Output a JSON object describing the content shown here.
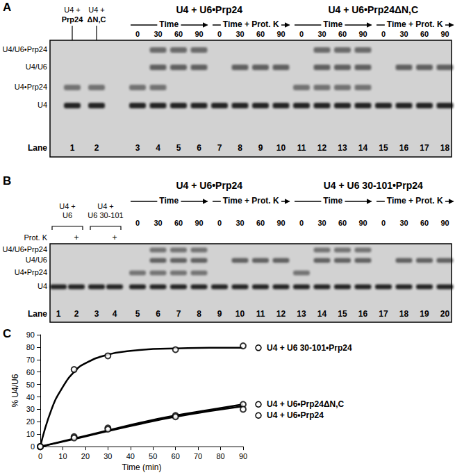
{
  "panels": {
    "A": {
      "label": "A",
      "lane_headers": [
        [
          "U4 +",
          "Prp24"
        ],
        [
          "U4 +",
          "ΔN,C"
        ]
      ],
      "groups": [
        {
          "title": "U4 + U6•Prp24",
          "arrows": [
            {
              "label": "Time",
              "times": [
                0,
                30,
                60,
                90
              ]
            },
            {
              "label": "Time + Prot. K",
              "times": [
                0,
                30,
                60,
                90
              ]
            }
          ]
        },
        {
          "title": "U4 + U6•Prp24ΔN,C",
          "arrows": [
            {
              "label": "Time",
              "times": [
                0,
                30,
                60,
                90
              ]
            },
            {
              "label": "Time + Prot. K",
              "times": [
                0,
                30,
                60,
                90
              ]
            }
          ]
        }
      ],
      "rows": [
        "U4/U6•Prp24",
        "U4/U6",
        "U4•Prp24",
        "U4"
      ],
      "lane_title": "Lane",
      "lanes": [
        {
          "number": 1,
          "bands": [
            "U4•Prp24",
            "U4"
          ]
        },
        {
          "number": 2,
          "bands": [
            "U4•Prp24",
            "U4"
          ]
        },
        {
          "number": 3,
          "bands": [
            "U4•Prp24",
            "U4"
          ]
        },
        {
          "number": 4,
          "bands": [
            "U4/U6•Prp24",
            "U4/U6",
            "U4•Prp24",
            "U4"
          ]
        },
        {
          "number": 5,
          "bands": [
            "U4/U6•Prp24",
            "U4/U6",
            "U4"
          ]
        },
        {
          "number": 6,
          "bands": [
            "U4/U6•Prp24",
            "U4/U6",
            "U4"
          ]
        },
        {
          "number": 7,
          "bands": [
            "U4"
          ]
        },
        {
          "number": 8,
          "bands": [
            "U4/U6",
            "U4"
          ]
        },
        {
          "number": 9,
          "bands": [
            "U4/U6",
            "U4"
          ]
        },
        {
          "number": 10,
          "bands": [
            "U4/U6",
            "U4"
          ]
        },
        {
          "number": 11,
          "bands": [
            "U4•Prp24",
            "U4"
          ]
        },
        {
          "number": 12,
          "bands": [
            "U4/U6•Prp24",
            "U4/U6",
            "U4•Prp24",
            "U4"
          ]
        },
        {
          "number": 13,
          "bands": [
            "U4/U6•Prp24",
            "U4/U6",
            "U4•Prp24",
            "U4"
          ]
        },
        {
          "number": 14,
          "bands": [
            "U4/U6•Prp24",
            "U4/U6",
            "U4•Prp24",
            "U4"
          ]
        },
        {
          "number": 15,
          "bands": [
            "U4"
          ]
        },
        {
          "number": 16,
          "bands": [
            "U4/U6",
            "U4"
          ]
        },
        {
          "number": 17,
          "bands": [
            "U4/U6",
            "U4"
          ]
        },
        {
          "number": 18,
          "bands": [
            "U4/U6",
            "U4"
          ]
        }
      ]
    },
    "B": {
      "label": "B",
      "lane_headers": [
        [
          "U4 +",
          "U6"
        ],
        [
          "U4 +",
          "U6 30-101"
        ]
      ],
      "prot_k_label": "Prot. K",
      "groups": [
        {
          "title": "U4 + U6•Prp24",
          "arrows": [
            {
              "label": "Time",
              "times": [
                0,
                30,
                60,
                90
              ]
            },
            {
              "label": "Time + Prot. K",
              "times": [
                0,
                30,
                60,
                90
              ]
            }
          ]
        },
        {
          "title": "U4 + U6 30-101•Prp24",
          "arrows": [
            {
              "label": "Time",
              "times": [
                0,
                30,
                60,
                90
              ]
            },
            {
              "label": "Time + Prot. K",
              "times": [
                0,
                30,
                60,
                90
              ]
            }
          ]
        }
      ],
      "rows": [
        "U4/U6•Prp24",
        "U4/U6",
        "U4•Prp24",
        "U4"
      ],
      "lane_title": "Lane",
      "lanes": [
        {
          "number": 1,
          "bands": [
            "U4"
          ]
        },
        {
          "number": 2,
          "bands": [
            "U4"
          ],
          "prot_k": "+"
        },
        {
          "number": 3,
          "bands": [
            "U4"
          ]
        },
        {
          "number": 4,
          "bands": [
            "U4"
          ],
          "prot_k": "+"
        },
        {
          "number": 5,
          "bands": [
            "U4•Prp24",
            "U4"
          ]
        },
        {
          "number": 6,
          "bands": [
            "U4/U6•Prp24",
            "U4/U6",
            "U4•Prp24",
            "U4"
          ]
        },
        {
          "number": 7,
          "bands": [
            "U4/U6•Prp24",
            "U4/U6",
            "U4•Prp24",
            "U4"
          ]
        },
        {
          "number": 8,
          "bands": [
            "U4/U6•Prp24",
            "U4/U6",
            "U4•Prp24",
            "U4"
          ]
        },
        {
          "number": 9,
          "bands": [
            "U4"
          ]
        },
        {
          "number": 10,
          "bands": [
            "U4/U6",
            "U4"
          ]
        },
        {
          "number": 11,
          "bands": [
            "U4/U6",
            "U4"
          ]
        },
        {
          "number": 12,
          "bands": [
            "U4/U6",
            "U4"
          ]
        },
        {
          "number": 13,
          "bands": [
            "U4•Prp24",
            "U4"
          ]
        },
        {
          "number": 14,
          "bands": [
            "U4/U6•Prp24",
            "U4/U6",
            "U4"
          ]
        },
        {
          "number": 15,
          "bands": [
            "U4/U6•Prp24",
            "U4/U6",
            "U4"
          ]
        },
        {
          "number": 16,
          "bands": [
            "U4/U6•Prp24",
            "U4/U6",
            "U4"
          ]
        },
        {
          "number": 17,
          "bands": [
            "U4"
          ]
        },
        {
          "number": 18,
          "bands": [
            "U4/U6",
            "U4"
          ]
        },
        {
          "number": 19,
          "bands": [
            "U4/U6",
            "U4"
          ]
        },
        {
          "number": 20,
          "bands": [
            "U4/U6",
            "U4"
          ]
        }
      ]
    },
    "C": {
      "label": "C"
    }
  },
  "chart_data": {
    "type": "scatter",
    "xlabel": "Time (min)",
    "ylabel": "% U4/U6",
    "xlim": [
      0,
      90
    ],
    "xticks": [
      0,
      10,
      20,
      30,
      40,
      50,
      60,
      70,
      80,
      90
    ],
    "ylim": [
      0,
      90
    ],
    "yticks": [
      0,
      10,
      20,
      30,
      40,
      50,
      60,
      70,
      80,
      90
    ],
    "grid": false,
    "series": [
      {
        "name": "U4 + U6 30-101•Prp24",
        "color": "#000000",
        "marker": "circle",
        "x": [
          0,
          15,
          30,
          60,
          90
        ],
        "values": [
          0,
          62,
          73,
          78,
          81
        ],
        "fit": {
          "x": [
            0,
            5,
            10,
            15,
            20,
            30,
            40,
            50,
            60,
            75,
            90
          ],
          "values": [
            0,
            30,
            48,
            60,
            67,
            74,
            77,
            78.5,
            79,
            79.5,
            79.5
          ]
        }
      },
      {
        "name": "U4 + U6•Prp24ΔN,C",
        "color": "#000000",
        "marker": "circle",
        "x": [
          0,
          15,
          30,
          60,
          90
        ],
        "values": [
          0,
          8,
          15,
          25,
          34
        ],
        "fit": {
          "x": [
            0,
            15,
            30,
            45,
            60,
            75,
            90
          ],
          "values": [
            0,
            6.5,
            13,
            19.5,
            25,
            29.5,
            34
          ]
        }
      },
      {
        "name": "U4 + U6•Prp24",
        "color": "#000000",
        "marker": "circle",
        "x": [
          0,
          15,
          30,
          60,
          90
        ],
        "values": [
          0,
          7,
          14,
          24,
          30
        ],
        "fit": {
          "x": [
            0,
            15,
            30,
            45,
            60,
            75,
            90
          ],
          "values": [
            0,
            6,
            12.5,
            18.5,
            24,
            28.5,
            32.5
          ]
        }
      }
    ]
  }
}
